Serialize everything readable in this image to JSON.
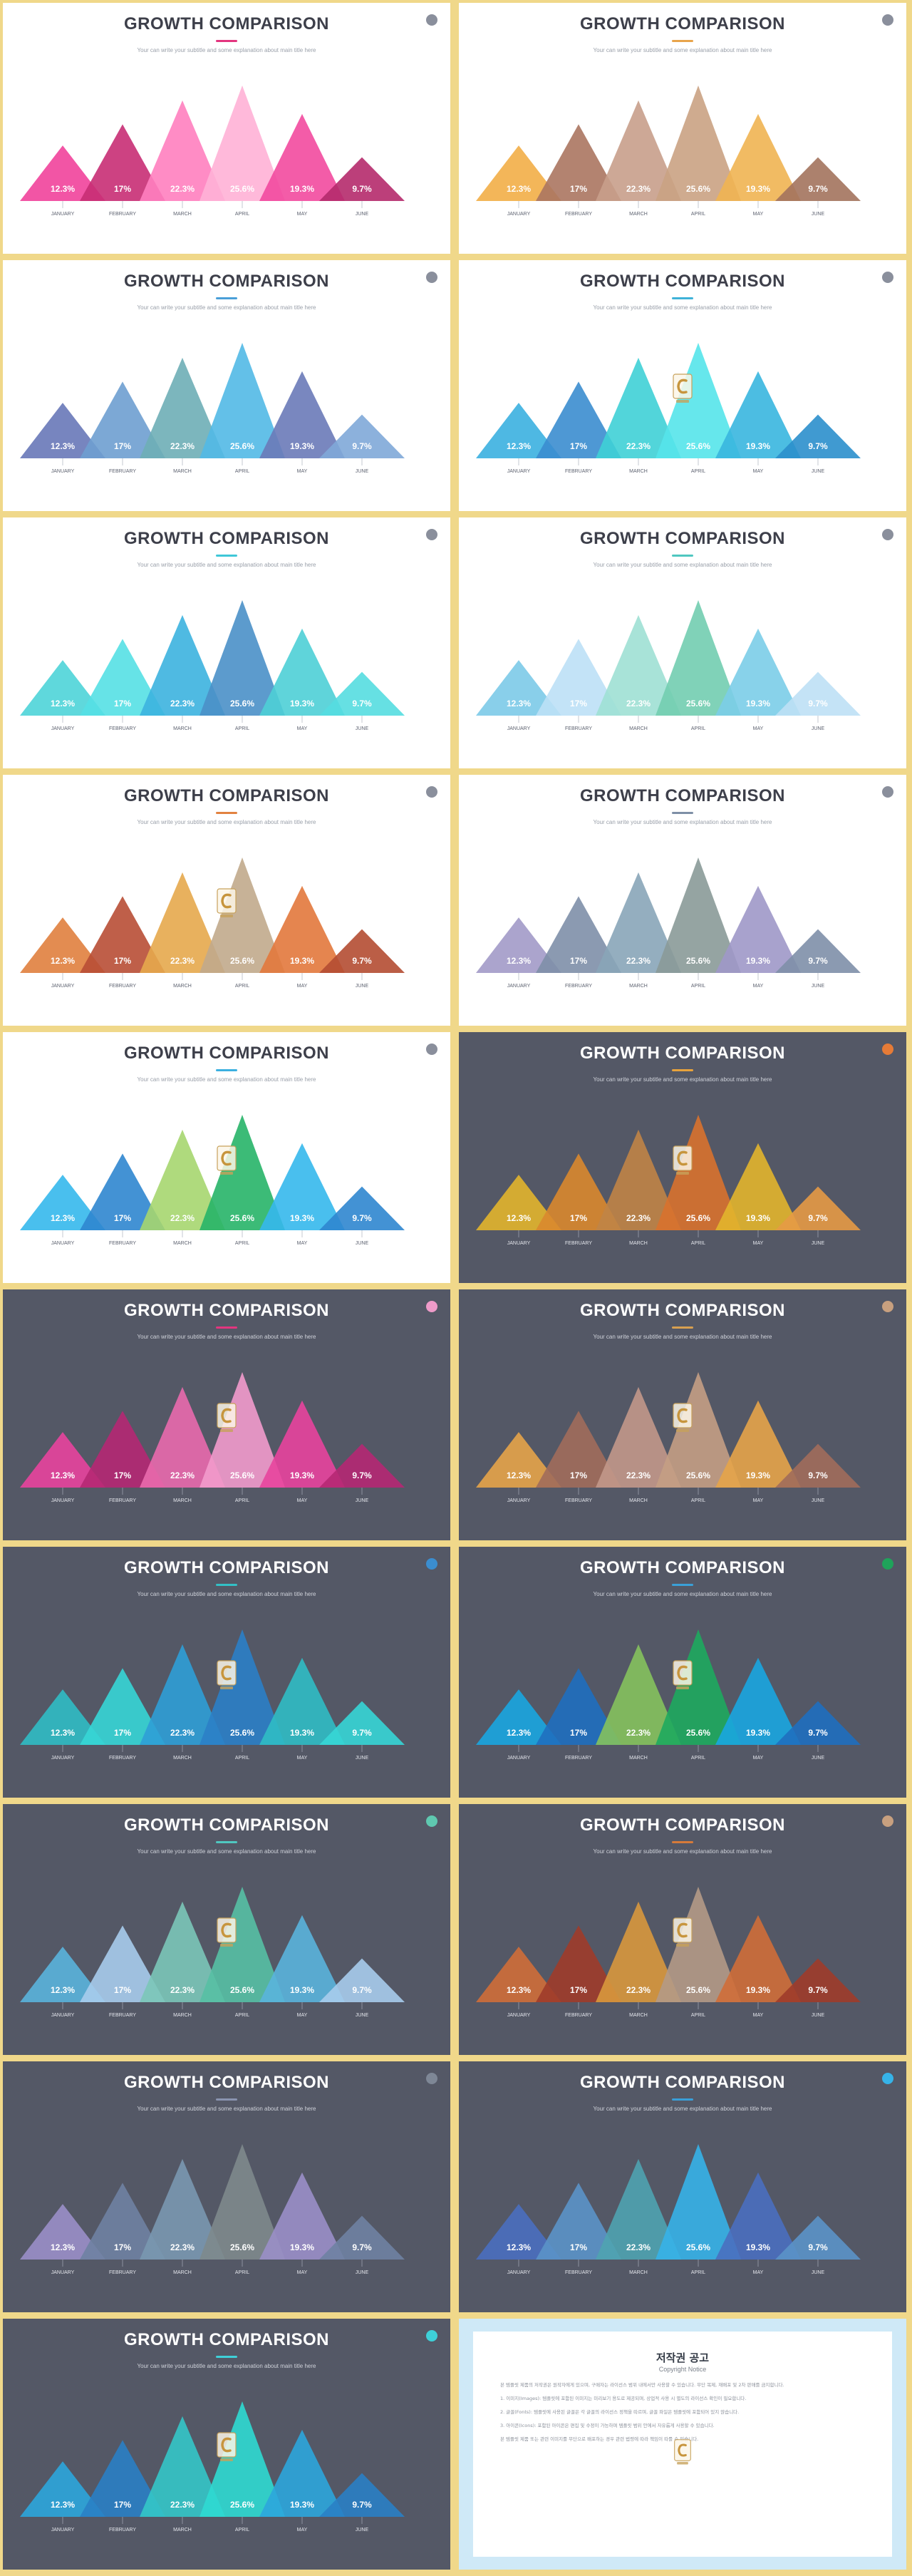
{
  "slide_title": "GROWTH COMPARISON",
  "slide_subtitle": "Your can write your subtitle and some explanation about main title here",
  "months": [
    "JANUARY",
    "FEBRUARY",
    "MARCH",
    "APRIL",
    "MAY",
    "JUNE"
  ],
  "value_labels": [
    "12.3%",
    "17%",
    "22.3%",
    "25.6%",
    "19.3%",
    "9.7%"
  ],
  "chart_data": {
    "type": "bar",
    "title": "GROWTH COMPARISON",
    "categories": [
      "JANUARY",
      "FEBRUARY",
      "MARCH",
      "APRIL",
      "MAY",
      "JUNE"
    ],
    "values": [
      12.3,
      17,
      22.3,
      25.6,
      19.3,
      9.7
    ],
    "unit": "%",
    "grid": false
  },
  "slides": [
    {
      "theme": "light",
      "badge": "#8a8f9c",
      "rule": "#e3357f",
      "logo": false,
      "colors": [
        "#f1429b",
        "#c82d74",
        "#ff80bf",
        "#ffb1d6",
        "#f24a9f",
        "#b52a6b"
      ]
    },
    {
      "theme": "light",
      "badge": "#8a8f9c",
      "rule": "#e8a44b",
      "logo": false,
      "colors": [
        "#f2ae47",
        "#ab7560",
        "#c89f8b",
        "#caa283",
        "#f0b452",
        "#a3735d"
      ]
    },
    {
      "theme": "light",
      "badge": "#8a8f9c",
      "rule": "#4a9fd8",
      "logo": false,
      "colors": [
        "#6878b8",
        "#6e9fd0",
        "#6eaeb6",
        "#52b9e6",
        "#6a7ab8",
        "#7fa8d8"
      ]
    },
    {
      "theme": "light",
      "badge": "#8a8f9c",
      "rule": "#3fb2d8",
      "logo": true,
      "colors": [
        "#3bb0e0",
        "#3b8dcf",
        "#3fd0d6",
        "#55e4ea",
        "#39b6df",
        "#2b8fcc"
      ]
    },
    {
      "theme": "light",
      "badge": "#8a8f9c",
      "rule": "#3fc7d8",
      "logo": false,
      "colors": [
        "#4ed4d8",
        "#55e0e4",
        "#3cb2df",
        "#4a90c8",
        "#4ecfd6",
        "#55dde0"
      ]
    },
    {
      "theme": "light",
      "badge": "#8a8f9c",
      "rule": "#4fc7c0",
      "logo": false,
      "colors": [
        "#7ccae8",
        "#bde0f6",
        "#9fe0d4",
        "#72cdb0",
        "#7bcde8",
        "#bee0f5"
      ]
    },
    {
      "theme": "light",
      "badge": "#8a8f9c",
      "rule": "#e28240",
      "logo": true,
      "colors": [
        "#e07f3e",
        "#b84e35",
        "#e6a94c",
        "#c1aa8c",
        "#e2783c",
        "#b44c32"
      ]
    },
    {
      "theme": "light",
      "badge": "#8a8f9c",
      "rule": "#7e8fa6",
      "logo": false,
      "colors": [
        "#a29ac8",
        "#7e8fa8",
        "#88a5b8",
        "#8a9a98",
        "#9e98c8",
        "#7e8fa8"
      ]
    },
    {
      "theme": "light",
      "badge": "#8a8f9c",
      "rule": "#3bb0e0",
      "logo": true,
      "colors": [
        "#35b8ec",
        "#2f86cf",
        "#a6d66f",
        "#27b468",
        "#35b8ec",
        "#2f86cf"
      ]
    },
    {
      "theme": "dark",
      "badge": "#e67b37",
      "rule": "#e8a33c",
      "logo": true,
      "colors": [
        "#e2b52c",
        "#d9882d",
        "#c08446",
        "#d8722d",
        "#e2b52c",
        "#e69a45"
      ]
    },
    {
      "theme": "dark",
      "badge": "#ee9bc9",
      "rule": "#e3357f",
      "logo": true,
      "colors": [
        "#e8449d",
        "#b52873",
        "#e96aad",
        "#f29bcc",
        "#e8449d",
        "#b52873"
      ]
    },
    {
      "theme": "dark",
      "badge": "#c8a07f",
      "rule": "#d8a050",
      "logo": true,
      "colors": [
        "#e6a449",
        "#a16d5b",
        "#c2988a",
        "#c49f84",
        "#e6a449",
        "#a16d5b"
      ]
    },
    {
      "theme": "dark",
      "badge": "#3b8dcf",
      "rule": "#32c0c6",
      "logo": true,
      "colors": [
        "#30bcc4",
        "#36d6d6",
        "#2f9fd6",
        "#2b7fc6",
        "#30bcc4",
        "#36d6d6"
      ]
    },
    {
      "theme": "dark",
      "badge": "#1fa35a",
      "rule": "#3aa0d8",
      "logo": true,
      "colors": [
        "#1aa6e0",
        "#1f6fbf",
        "#85c25d",
        "#1eaa5e",
        "#1aa6e0",
        "#1f6fbf"
      ]
    },
    {
      "theme": "dark",
      "badge": "#5fc8b0",
      "rule": "#4fc7c0",
      "logo": true,
      "colors": [
        "#5ab4dc",
        "#a7ccec",
        "#7bc7b8",
        "#56c0a4",
        "#5ab4dc",
        "#a7ccec"
      ]
    },
    {
      "theme": "dark",
      "badge": "#c8a07f",
      "rule": "#d67a3a",
      "logo": true,
      "colors": [
        "#cf6e38",
        "#9f3c2a",
        "#d8983d",
        "#b49a86",
        "#cf6e38",
        "#9f3c2a"
      ]
    },
    {
      "theme": "dark",
      "badge": "#7e8796",
      "rule": "#8a94b0",
      "logo": false,
      "colors": [
        "#9a8fc8",
        "#6f82a2",
        "#7a98b0",
        "#7e8a8c",
        "#9a8fc8",
        "#6f82a2"
      ]
    },
    {
      "theme": "dark",
      "badge": "#36b3e8",
      "rule": "#3a9fd8",
      "logo": false,
      "colors": [
        "#4a6fbf",
        "#5b93c8",
        "#4fa3b0",
        "#36b3e8",
        "#4a6fbf",
        "#5b93c8"
      ]
    },
    {
      "theme": "dark",
      "badge": "#3ed0d8",
      "rule": "#3ed0d8",
      "logo": true,
      "colors": [
        "#2ca6dc",
        "#2a7fc4",
        "#34c6c8",
        "#2fdad2",
        "#2ca6dc",
        "#2a7fc4"
      ]
    }
  ],
  "notice": {
    "title": "저작권 공고",
    "subtitle": "Copyright Notice",
    "paragraphs": [
      "본 템플릿 제품의 저작권은 원작자에게 있으며, 구매자는 라이선스 범위 내에서만 사용할 수 있습니다. 무단 복제, 재배포 및 2차 판매를 금지합니다.",
      "1. 이미지(Images): 템플릿에 포함된 이미지는 미리보기 용도로 제공되며, 상업적 사용 시 별도의 라이선스 확인이 필요합니다.",
      "2. 글꼴(Fonts): 템플릿에 사용된 글꼴은 각 글꼴의 라이선스 정책을 따르며, 글꼴 파일은 템플릿에 포함되어 있지 않습니다.",
      "3. 아이콘(Icons): 포함된 아이콘은 편집 및 수정이 가능하며 템플릿 범위 안에서 자유롭게 사용할 수 있습니다.",
      "본 템플릿 제품 또는 관련 이미지를 무단으로 배포하는 경우 관련 법령에 따라 책임이 따를 수 있습니다."
    ]
  }
}
